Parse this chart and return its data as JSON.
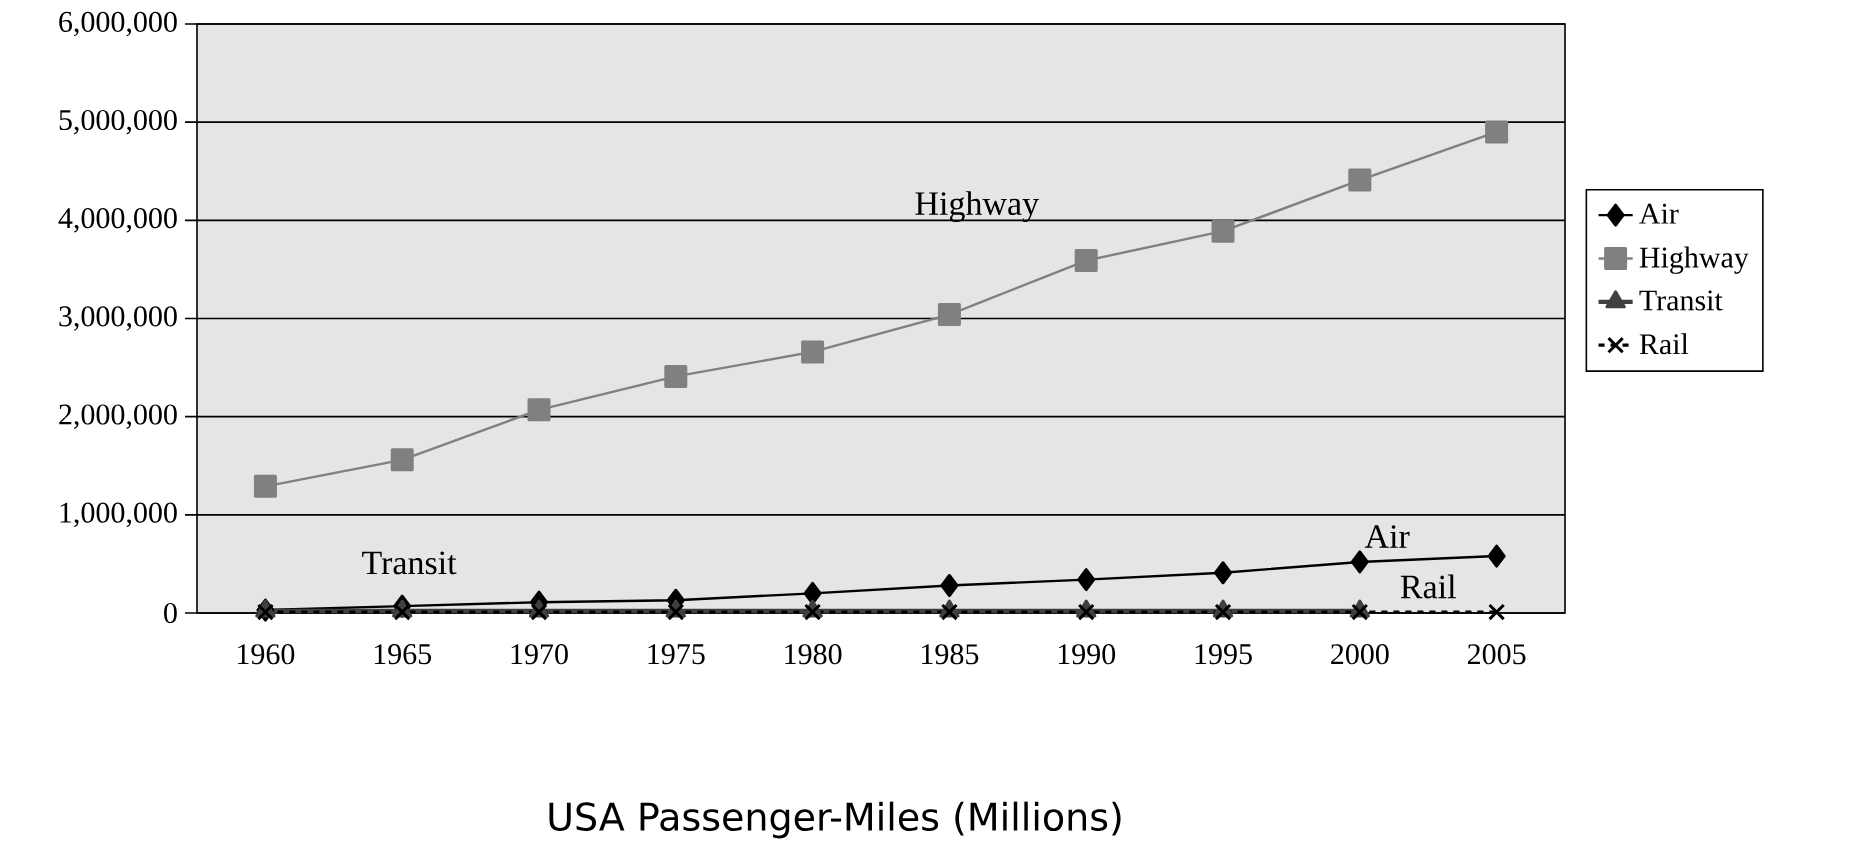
{
  "chart_data": {
    "type": "line",
    "title": "USA Passenger-Miles (Millions)",
    "categories": [
      "1960",
      "1965",
      "1970",
      "1975",
      "1980",
      "1985",
      "1990",
      "1995",
      "2000",
      "2005"
    ],
    "series": [
      {
        "name": "Air",
        "color": "#000000",
        "marker": "diamond",
        "line_style": "solid",
        "values": [
          30000,
          70000,
          110000,
          130000,
          200000,
          280000,
          340000,
          410000,
          520000,
          580000
        ]
      },
      {
        "name": "Highway",
        "color": "#808080",
        "marker": "square",
        "line_style": "solid",
        "values": [
          1290000,
          1560000,
          2070000,
          2410000,
          2660000,
          3040000,
          3590000,
          3890000,
          4410000,
          4900000
        ]
      },
      {
        "name": "Transit",
        "color": "#404040",
        "marker": "triangle",
        "line_style": "solid",
        "values": [
          20000,
          20000,
          20000,
          20000,
          20000,
          20000,
          20000,
          20000,
          20000,
          null
        ]
      },
      {
        "name": "Rail",
        "color": "#000000",
        "marker": "cross",
        "line_style": "dashed",
        "values": [
          10000,
          10000,
          10000,
          10000,
          10000,
          10000,
          10000,
          10000,
          10000,
          10000
        ]
      }
    ],
    "annotations": [
      "Highway",
      "Transit",
      "Air",
      "Rail"
    ],
    "ylim": [
      0,
      6000000
    ],
    "yticks": [
      {
        "value": 0,
        "label": "0"
      },
      {
        "value": 1000000,
        "label": "1,000,000"
      },
      {
        "value": 2000000,
        "label": "2,000,000"
      },
      {
        "value": 3000000,
        "label": "3,000,000"
      },
      {
        "value": 4000000,
        "label": "4,000,000"
      },
      {
        "value": 5000000,
        "label": "5,000,000"
      },
      {
        "value": 6000000,
        "label": "6,000,000"
      }
    ],
    "grid": "y",
    "legend": "right"
  }
}
